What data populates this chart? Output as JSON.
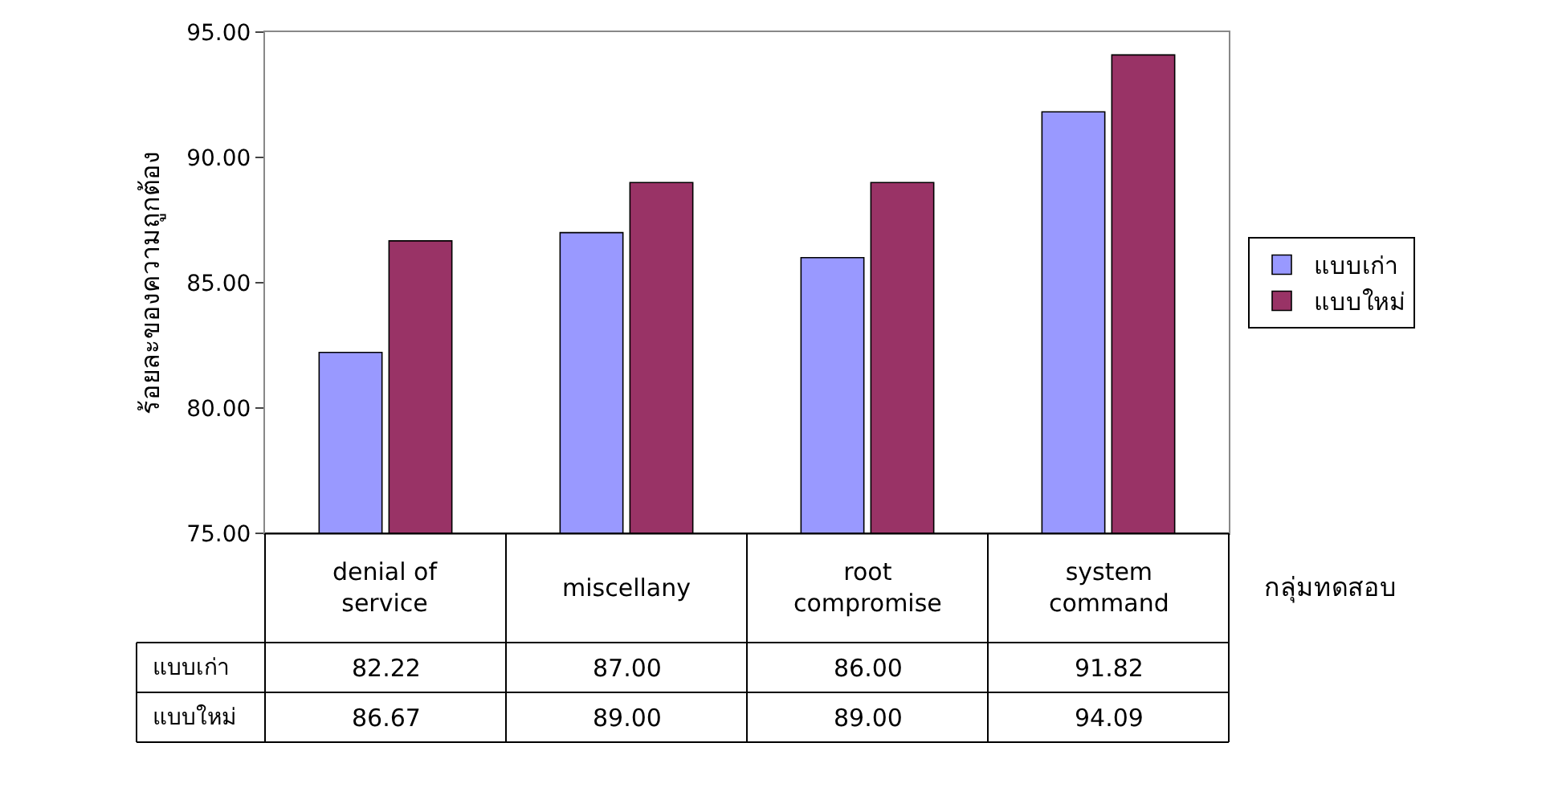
{
  "chart_data": {
    "type": "bar",
    "ylabel": "ร้อยละของความถูกต้อง",
    "xlabel": "กลุ่มทดสอบ",
    "categories": [
      "denial of service",
      "miscellany",
      "root compromise",
      "system command"
    ],
    "series": [
      {
        "name": "แบบเก่า",
        "color": "#9999ff",
        "values": [
          82.22,
          87.0,
          86.0,
          91.82
        ],
        "value_labels": [
          "82.22",
          "87.00",
          "86.00",
          "91.82"
        ]
      },
      {
        "name": "แบบใหม่",
        "color": "#993366",
        "values": [
          86.67,
          89.0,
          89.0,
          94.09
        ],
        "value_labels": [
          "86.67",
          "89.00",
          "89.00",
          "94.09"
        ]
      }
    ],
    "ylim": [
      75,
      95
    ],
    "yticks": [
      {
        "value": 75,
        "label": "75.00"
      },
      {
        "value": 80,
        "label": "80.00"
      },
      {
        "value": 85,
        "label": "85.00"
      },
      {
        "value": 90,
        "label": "90.00"
      },
      {
        "value": 95,
        "label": "95.00"
      }
    ],
    "legend": "right"
  }
}
